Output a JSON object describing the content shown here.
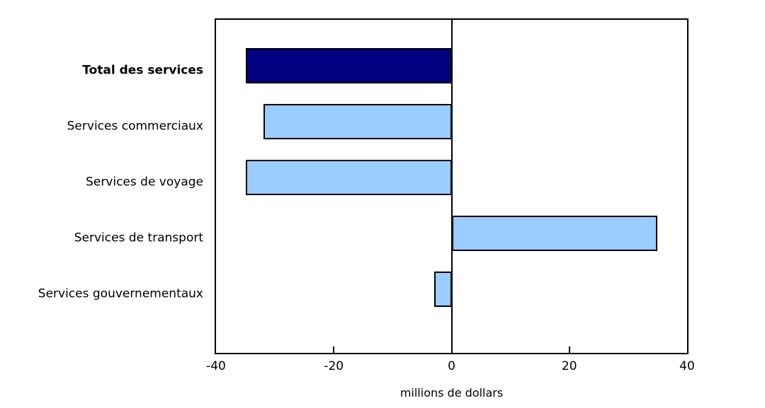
{
  "chart_data": {
    "type": "bar",
    "orientation": "horizontal",
    "title": "",
    "categories": [
      "Total des services",
      "Services commerciaux",
      "Services de voyage",
      "Services de transport",
      "Services gouvernementaux"
    ],
    "values": [
      -35,
      -32,
      -35,
      35,
      -3
    ],
    "bar_colors": [
      "#000080",
      "#99ccff",
      "#99ccff",
      "#99ccff",
      "#99ccff"
    ],
    "bold_labels": [
      true,
      false,
      false,
      false,
      false
    ],
    "xlabel": "millions de dollars",
    "ylabel": "",
    "xticks": [
      -40,
      -20,
      0,
      20,
      40
    ],
    "xtick_labels": [
      "-40",
      "-20",
      "0",
      "20",
      "40"
    ],
    "xlim": [
      -40,
      40
    ],
    "grid": false,
    "legend": "none",
    "zero_line": true,
    "colors": {
      "accent_dark": "#000080",
      "accent_light": "#99ccff",
      "bar_border": "#000000",
      "axis": "#000000",
      "background": "#ffffff",
      "text": "#000000"
    }
  }
}
